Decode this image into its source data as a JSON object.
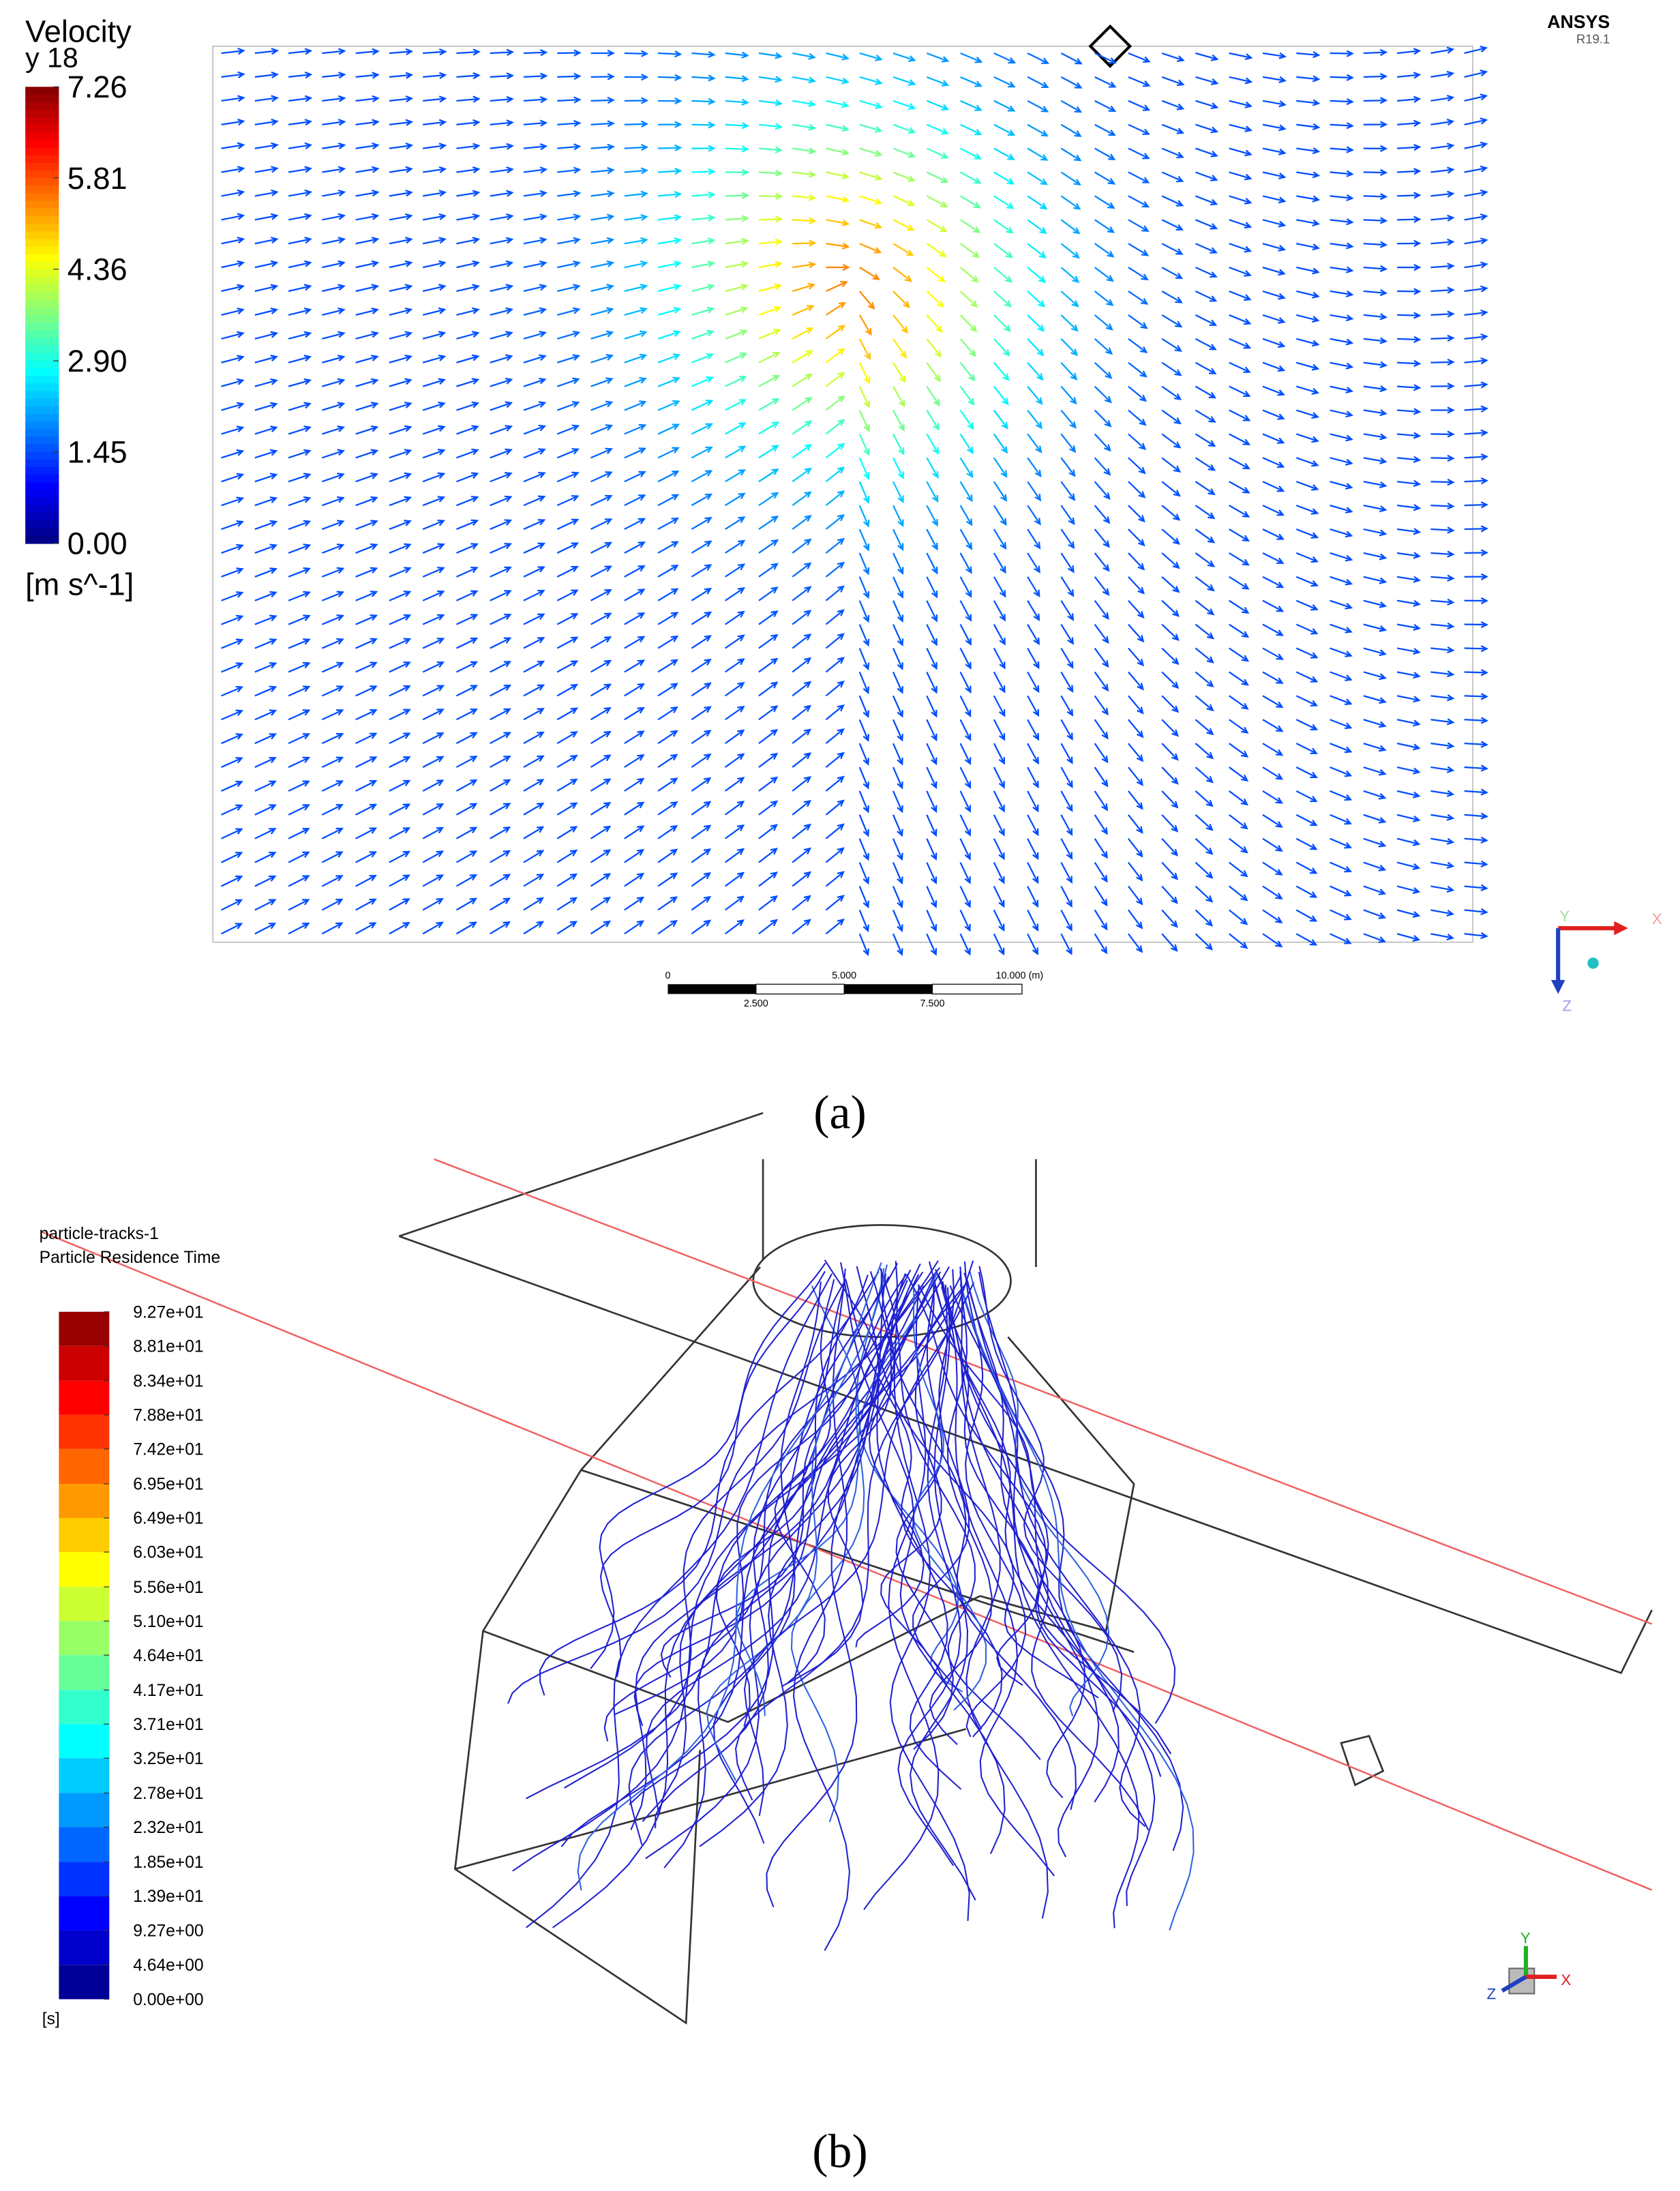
{
  "panel_a": {
    "legend_title": "Velocity",
    "legend_subtitle": "y 18",
    "legend_ticks": [
      7.26,
      5.81,
      4.36,
      {
        "value": 2.9,
        "label": "2.90"
      },
      1.45,
      {
        "value": 0,
        "label": "0.00"
      }
    ],
    "legend_unit": "[m s^-1]",
    "brand": "ANSYS",
    "version": "R19.1",
    "scale_bar": {
      "top_labels": [
        "0",
        "5.000",
        "10.000",
        "(m)"
      ],
      "bottom_labels": [
        "2.500",
        "7.500"
      ]
    },
    "axes": {
      "x": "X",
      "y": "Y",
      "z": "Z"
    },
    "caption": "(a)"
  },
  "panel_b": {
    "legend_title": "particle-tracks-1",
    "legend_subtitle": "Particle Residence Time",
    "legend_ticks": [
      {
        "value": 92.7,
        "label": "9.27e+01"
      },
      {
        "value": 88.1,
        "label": "8.81e+01"
      },
      {
        "value": 83.4,
        "label": "8.34e+01"
      },
      {
        "value": 78.8,
        "label": "7.88e+01"
      },
      {
        "value": 74.2,
        "label": "7.42e+01"
      },
      {
        "value": 69.5,
        "label": "6.95e+01"
      },
      {
        "value": 64.9,
        "label": "6.49e+01"
      },
      {
        "value": 60.3,
        "label": "6.03e+01"
      },
      {
        "value": 55.6,
        "label": "5.56e+01"
      },
      {
        "value": 51.0,
        "label": "5.10e+01"
      },
      {
        "value": 46.4,
        "label": "4.64e+01"
      },
      {
        "value": 41.7,
        "label": "4.17e+01"
      },
      {
        "value": 37.1,
        "label": "3.71e+01"
      },
      {
        "value": 32.5,
        "label": "3.25e+01"
      },
      {
        "value": 27.8,
        "label": "2.78e+01"
      },
      {
        "value": 23.2,
        "label": "2.32e+01"
      },
      {
        "value": 18.5,
        "label": "1.85e+01"
      },
      {
        "value": 13.9,
        "label": "1.39e+01"
      },
      {
        "value": 9.27,
        "label": "9.27e+00"
      },
      {
        "value": 4.64,
        "label": "4.64e+00"
      },
      {
        "value": 0,
        "label": "0.00e+00"
      }
    ],
    "legend_unit": "[s]",
    "axes": {
      "x": "X",
      "y": "Y",
      "z": "Z"
    },
    "caption": "(b)"
  }
}
